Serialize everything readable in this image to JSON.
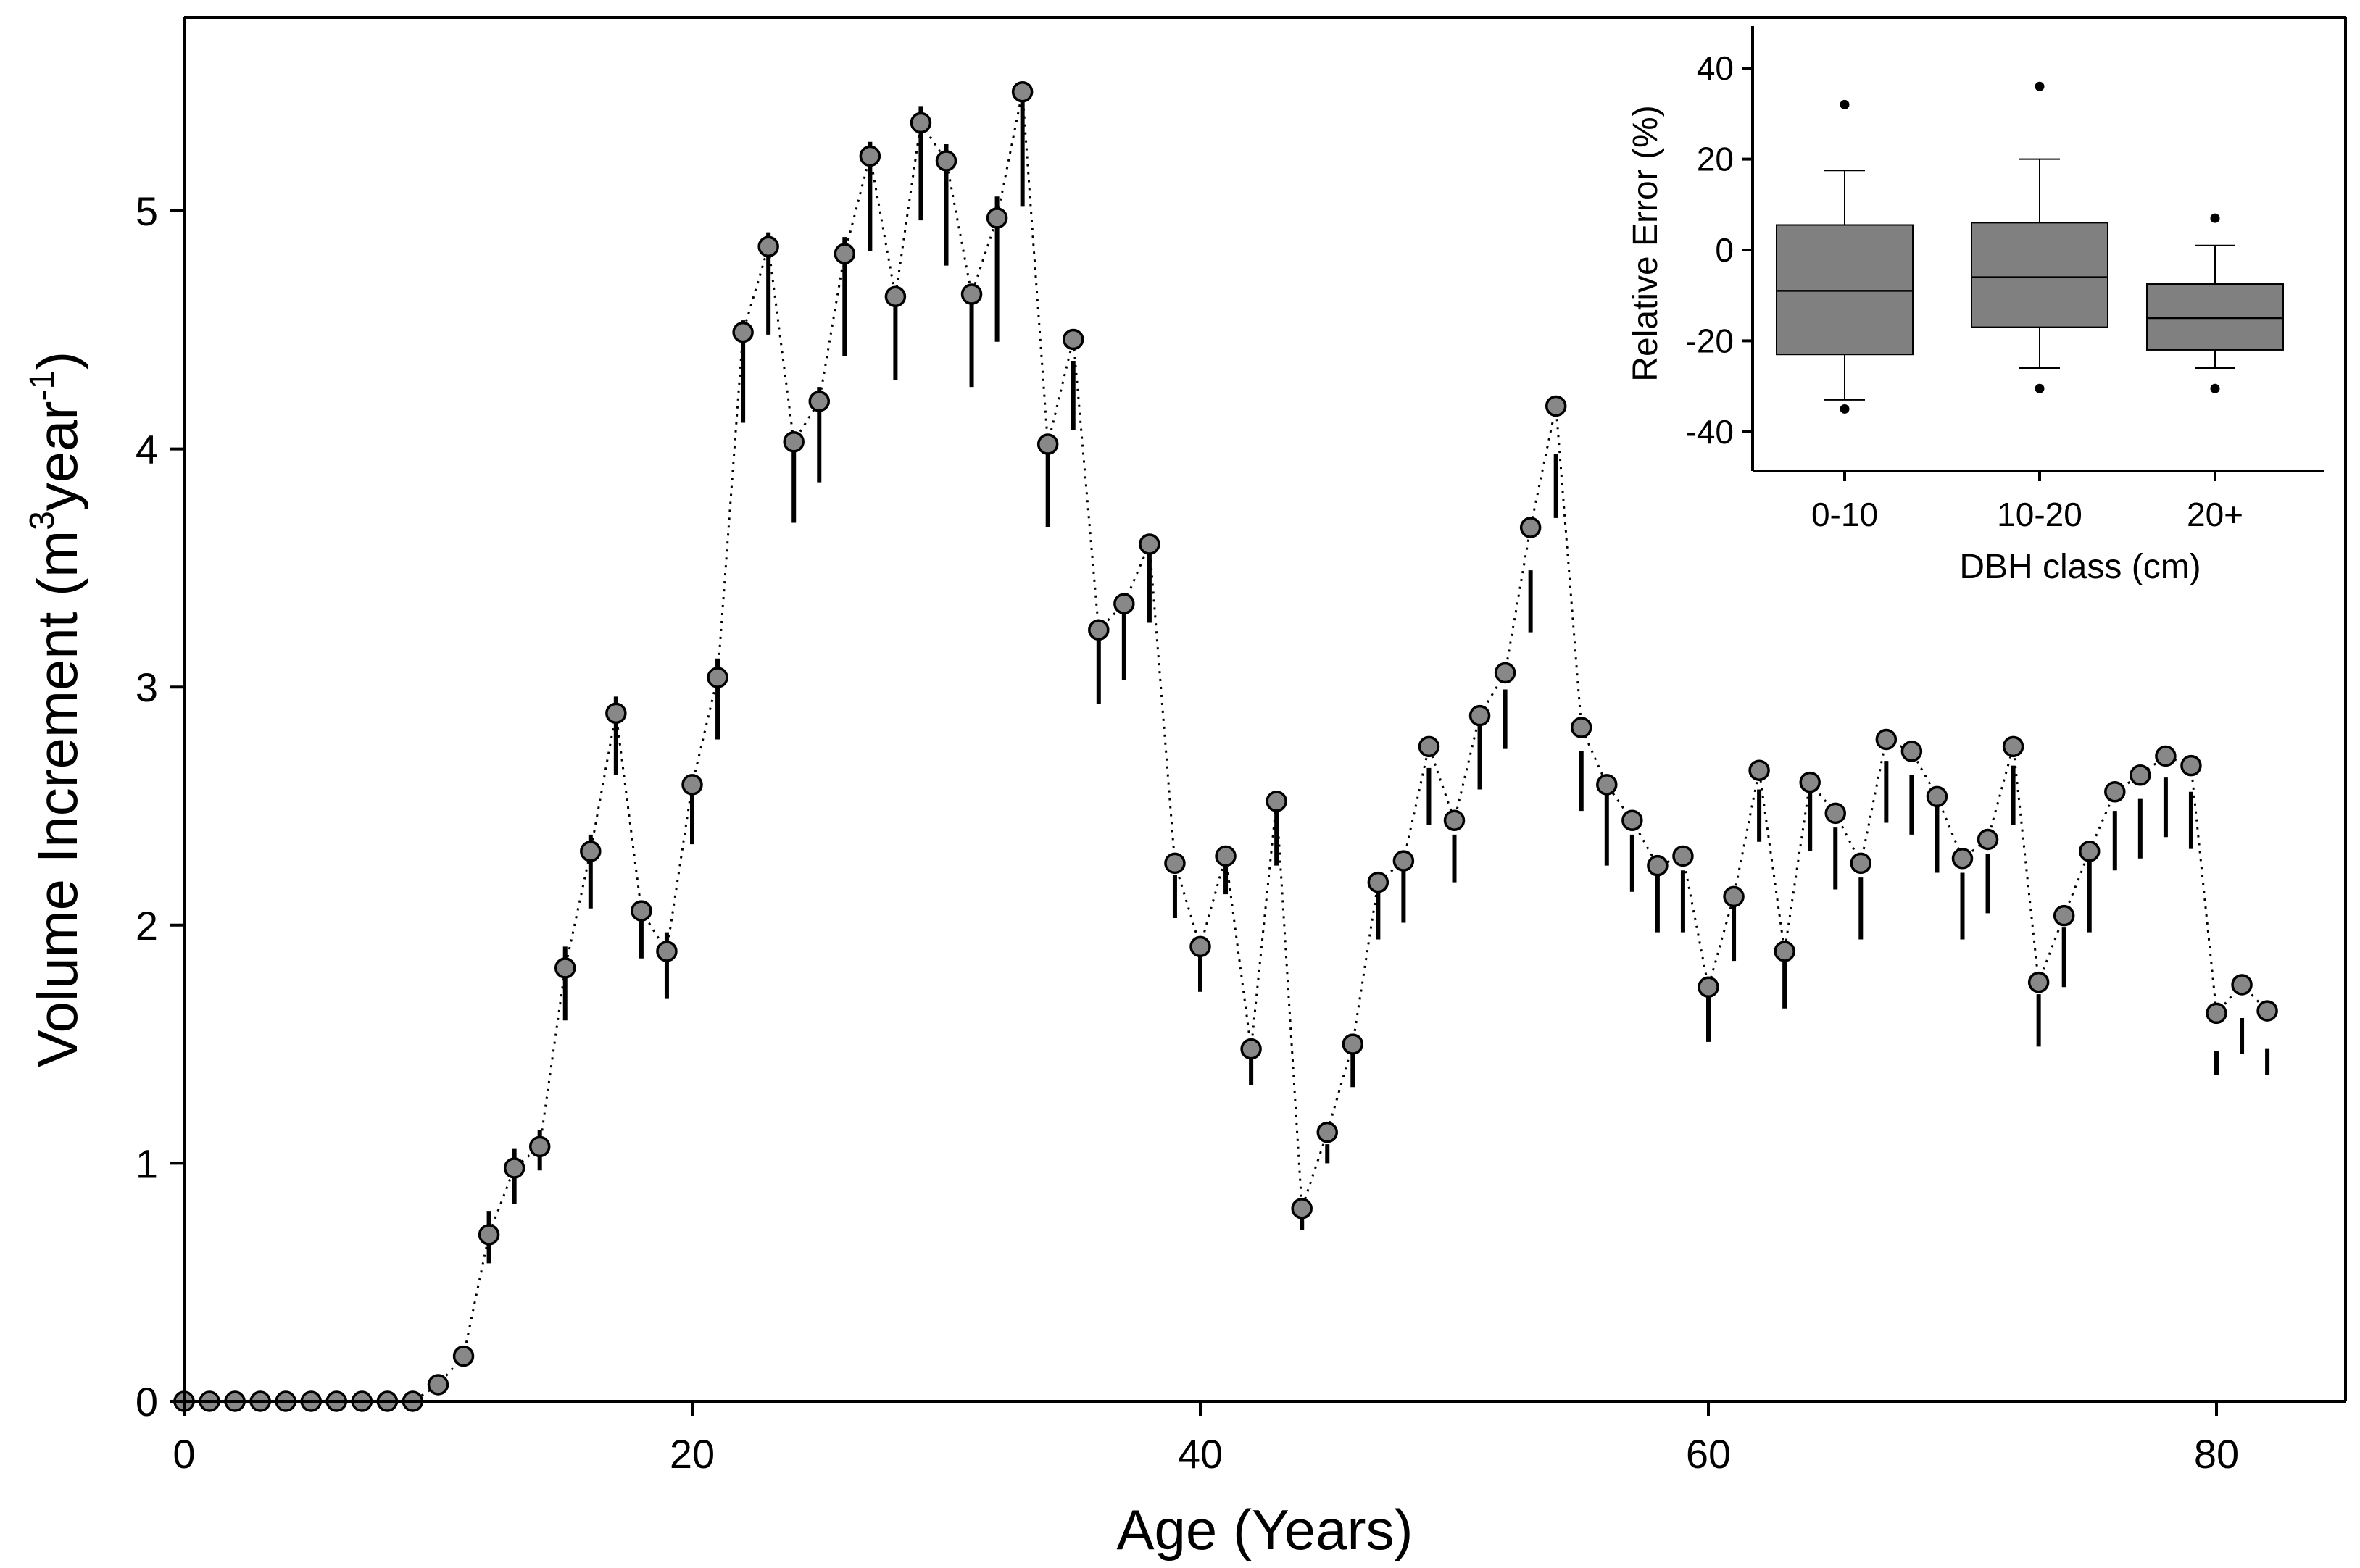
{
  "chart_data": [
    {
      "type": "scatter",
      "xlabel": "Age (Years)",
      "ylabel": "Volume Increment (m",
      "ylabel_sup1": "3",
      "ylabel_mid": "year",
      "ylabel_sup2": "-1",
      "ylabel_end": ")",
      "xlim": [
        0,
        85
      ],
      "ylim": [
        0,
        5.8
      ],
      "xticks": [
        0,
        20,
        40,
        60,
        80
      ],
      "yticks": [
        0,
        1,
        2,
        3,
        4,
        5
      ],
      "marker_color": "#888888",
      "series": [
        {
          "name": "Volume increment",
          "x": [
            0,
            1,
            2,
            3,
            4,
            5,
            6,
            7,
            8,
            9,
            10,
            11,
            12,
            13,
            14,
            15,
            16,
            17,
            18,
            19,
            20,
            21,
            22,
            23,
            24,
            25,
            26,
            27,
            28,
            29,
            30,
            31,
            32,
            33,
            34,
            35,
            36,
            37,
            38,
            39,
            40,
            41,
            42,
            43,
            44,
            45,
            46,
            47,
            48,
            49,
            50,
            51,
            52,
            53,
            54,
            55,
            56,
            57,
            58,
            59,
            60,
            61,
            62,
            63,
            64,
            65,
            66,
            67,
            68,
            69,
            70,
            71,
            72,
            73,
            74,
            75,
            76,
            77,
            78,
            79,
            80,
            81,
            82
          ],
          "y": [
            0,
            0,
            0,
            0,
            0,
            0,
            0,
            0,
            0,
            0,
            0.07,
            0.19,
            0.7,
            0.98,
            1.07,
            1.82,
            2.31,
            2.89,
            2.06,
            1.89,
            2.59,
            3.04,
            4.49,
            4.85,
            4.03,
            4.2,
            4.82,
            5.23,
            4.64,
            5.37,
            5.21,
            4.65,
            4.97,
            5.5,
            4.02,
            4.46,
            3.24,
            3.35,
            3.6,
            2.26,
            1.91,
            2.29,
            1.48,
            2.52,
            0.81,
            1.13,
            1.5,
            2.18,
            2.27,
            2.75,
            2.44,
            2.88,
            3.06,
            3.67,
            4.18,
            2.83,
            2.59,
            2.44,
            2.25,
            2.29,
            1.74,
            2.12,
            2.65,
            1.89,
            2.6,
            2.47,
            2.26,
            2.78,
            2.73,
            2.54,
            2.28,
            2.36,
            2.75,
            1.76,
            2.04,
            2.31,
            2.56,
            2.63,
            2.71,
            2.67,
            1.63,
            1.75,
            1.64
          ],
          "error_low": [
            0,
            0,
            0,
            0,
            0,
            0,
            0,
            0,
            0,
            0,
            0,
            0,
            0.58,
            0.83,
            0.97,
            1.6,
            2.07,
            2.63,
            1.86,
            1.69,
            2.34,
            2.78,
            4.11,
            4.48,
            3.69,
            3.86,
            4.39,
            4.83,
            4.29,
            4.96,
            4.77,
            4.26,
            4.45,
            5.02,
            3.67,
            4.08,
            2.93,
            3.03,
            3.27,
            2.03,
            1.72,
            2.13,
            1.33,
            2.25,
            0.72,
            1.0,
            1.32,
            1.94,
            2.01,
            2.42,
            2.18,
            2.57,
            2.74,
            3.23,
            3.71,
            2.48,
            2.25,
            2.14,
            1.97,
            1.97,
            1.51,
            1.85,
            2.35,
            1.65,
            2.31,
            2.15,
            1.94,
            2.43,
            2.38,
            2.22,
            1.94,
            2.05,
            2.42,
            1.49,
            1.74,
            1.97,
            2.23,
            2.28,
            2.37,
            2.32,
            1.37,
            1.46,
            1.37
          ],
          "error_high": [
            0,
            0,
            0,
            0,
            0,
            0,
            0,
            0,
            0,
            0,
            0,
            0,
            0.8,
            1.06,
            1.14,
            1.91,
            2.38,
            2.96,
            2.08,
            1.97,
            2.61,
            3.12,
            4.54,
            4.91,
            4.05,
            4.26,
            4.89,
            5.29,
            4.66,
            5.44,
            5.28,
            4.69,
            5.06,
            5.53,
            4.03,
            4.37,
            3.24,
            3.36,
            3.57,
            2.21,
            1.91,
            2.27,
            1.46,
            2.52,
            0.83,
            1.08,
            1.48,
            2.14,
            2.23,
            2.66,
            2.38,
            2.87,
            2.99,
            3.49,
            3.98,
            2.73,
            2.57,
            2.38,
            2.21,
            2.23,
            1.72,
            2.1,
            2.57,
            1.9,
            2.59,
            2.41,
            2.2,
            2.69,
            2.63,
            2.53,
            2.22,
            2.3,
            2.67,
            1.71,
            1.99,
            2.28,
            2.48,
            2.53,
            2.62,
            2.56,
            1.47,
            1.61,
            1.48
          ]
        }
      ]
    },
    {
      "type": "box",
      "xlabel": "DBH class (cm)",
      "ylabel": "Relative Error (%)",
      "ylim": [
        -48,
        48
      ],
      "yticks": [
        -40,
        -20,
        0,
        20,
        40
      ],
      "categories": [
        "0-10",
        "10-20",
        "20+"
      ],
      "box_color": "#808080",
      "boxes": [
        {
          "q1": -23,
          "median": -9,
          "q3": 5.5,
          "whisker_low": -33,
          "whisker_high": 17.5,
          "outliers": [
            -35,
            32
          ]
        },
        {
          "q1": -17,
          "median": -6,
          "q3": 6,
          "whisker_low": -26,
          "whisker_high": 20,
          "outliers": [
            -30.5,
            36
          ]
        },
        {
          "q1": -22,
          "median": -15,
          "q3": -7.5,
          "whisker_low": -26,
          "whisker_high": 1,
          "outliers": [
            -30.5,
            7
          ]
        }
      ]
    }
  ]
}
